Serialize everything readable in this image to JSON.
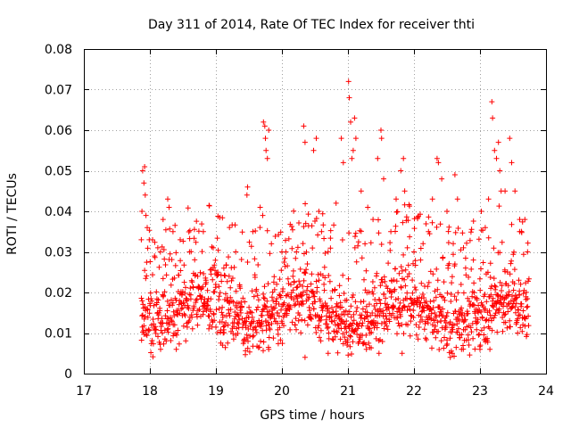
{
  "chart_data": {
    "type": "scatter",
    "title": "Day 311 of 2014, Rate Of TEC Index for receiver thti",
    "xlabel": "GPS time / hours",
    "ylabel": "ROTI / TECUs",
    "xlim": [
      17,
      24
    ],
    "ylim": [
      0,
      0.08
    ],
    "x_ticks": [
      17,
      18,
      19,
      20,
      21,
      22,
      23,
      24
    ],
    "x_tick_labels": [
      "17",
      "18",
      "19",
      "20",
      "21",
      "22",
      "23",
      "24"
    ],
    "y_ticks": [
      0,
      0.01,
      0.02,
      0.03,
      0.04,
      0.05,
      0.06,
      0.07,
      0.08
    ],
    "y_tick_labels": [
      "0",
      "0.01",
      "0.02",
      "0.03",
      "0.04",
      "0.05",
      "0.06",
      "0.07",
      "0.08"
    ],
    "grid": true,
    "marker": "plus",
    "marker_color": "#ff0000",
    "series": [
      {
        "name": "ROTI",
        "points": [
          [
            17.87,
            0.033
          ],
          [
            17.88,
            0.04
          ],
          [
            17.89,
            0.05
          ],
          [
            17.91,
            0.047
          ],
          [
            17.92,
            0.051
          ],
          [
            17.93,
            0.044
          ],
          [
            17.94,
            0.039
          ],
          [
            17.96,
            0.036
          ],
          [
            17.99,
            0.033
          ],
          [
            18.07,
            0.029
          ],
          [
            18.12,
            0.031
          ],
          [
            18.16,
            0.03
          ],
          [
            18.2,
            0.038
          ],
          [
            18.27,
            0.043
          ],
          [
            18.29,
            0.041
          ],
          [
            18.35,
            0.035
          ],
          [
            18.46,
            0.033
          ],
          [
            18.6,
            0.03
          ],
          [
            18.81,
            0.035
          ],
          [
            18.96,
            0.031
          ],
          [
            19.03,
            0.025
          ],
          [
            19.12,
            0.026
          ],
          [
            19.2,
            0.024
          ],
          [
            19.3,
            0.03
          ],
          [
            19.47,
            0.044
          ],
          [
            19.48,
            0.046
          ],
          [
            19.56,
            0.035
          ],
          [
            19.67,
            0.041
          ],
          [
            19.71,
            0.039
          ],
          [
            19.72,
            0.062
          ],
          [
            19.74,
            0.061
          ],
          [
            19.75,
            0.058
          ],
          [
            19.76,
            0.055
          ],
          [
            19.78,
            0.053
          ],
          [
            19.8,
            0.06
          ],
          [
            19.84,
            0.032
          ],
          [
            20.0,
            0.03
          ],
          [
            20.06,
            0.03
          ],
          [
            20.22,
            0.03
          ],
          [
            20.33,
            0.061
          ],
          [
            20.35,
            0.057
          ],
          [
            20.48,
            0.055
          ],
          [
            20.52,
            0.058
          ],
          [
            20.56,
            0.04
          ],
          [
            20.6,
            0.035
          ],
          [
            20.7,
            0.03
          ],
          [
            20.82,
            0.042
          ],
          [
            20.9,
            0.058
          ],
          [
            20.93,
            0.052
          ],
          [
            21.01,
            0.072
          ],
          [
            21.02,
            0.068
          ],
          [
            21.04,
            0.062
          ],
          [
            21.06,
            0.053
          ],
          [
            21.08,
            0.055
          ],
          [
            21.1,
            0.063
          ],
          [
            21.12,
            0.058
          ],
          [
            21.2,
            0.045
          ],
          [
            21.3,
            0.041
          ],
          [
            21.38,
            0.038
          ],
          [
            21.45,
            0.053
          ],
          [
            21.5,
            0.06
          ],
          [
            21.51,
            0.058
          ],
          [
            21.54,
            0.048
          ],
          [
            21.65,
            0.035
          ],
          [
            21.73,
            0.043
          ],
          [
            21.8,
            0.05
          ],
          [
            21.84,
            0.053
          ],
          [
            21.86,
            0.045
          ],
          [
            21.9,
            0.031
          ],
          [
            22.0,
            0.03
          ],
          [
            22.1,
            0.028
          ],
          [
            22.22,
            0.035
          ],
          [
            22.28,
            0.043
          ],
          [
            22.35,
            0.053
          ],
          [
            22.37,
            0.052
          ],
          [
            22.42,
            0.048
          ],
          [
            22.5,
            0.04
          ],
          [
            22.62,
            0.049
          ],
          [
            22.66,
            0.043
          ],
          [
            22.75,
            0.031
          ],
          [
            22.9,
            0.028
          ],
          [
            23.02,
            0.04
          ],
          [
            23.08,
            0.036
          ],
          [
            23.13,
            0.043
          ],
          [
            23.18,
            0.067
          ],
          [
            23.19,
            0.063
          ],
          [
            23.22,
            0.055
          ],
          [
            23.25,
            0.053
          ],
          [
            23.28,
            0.057
          ],
          [
            23.3,
            0.05
          ],
          [
            23.32,
            0.045
          ],
          [
            23.38,
            0.045
          ],
          [
            23.45,
            0.058
          ],
          [
            23.48,
            0.052
          ],
          [
            23.53,
            0.045
          ],
          [
            23.6,
            0.035
          ],
          [
            23.68,
            0.038
          ],
          [
            23.72,
            0.03
          ],
          [
            18.4,
            0.006
          ],
          [
            19.1,
            0.007
          ],
          [
            19.8,
            0.006
          ],
          [
            20.35,
            0.004
          ],
          [
            20.7,
            0.005
          ],
          [
            21.28,
            0.006
          ],
          [
            21.47,
            0.005
          ],
          [
            21.82,
            0.005
          ],
          [
            22.55,
            0.004
          ],
          [
            22.58,
            0.005
          ],
          [
            22.72,
            0.006
          ],
          [
            23.0,
            0.006
          ],
          [
            23.15,
            0.006
          ]
        ],
        "dense_band": {
          "x_range": [
            17.87,
            23.74
          ],
          "count": 1500,
          "center_min": 0.012,
          "center_max": 0.018,
          "spread": 0.007,
          "floor": 0.004,
          "note": "thousands of overlapping markers between roughly 0.006 and 0.030 TECUs across the whole time span"
        }
      }
    ]
  }
}
